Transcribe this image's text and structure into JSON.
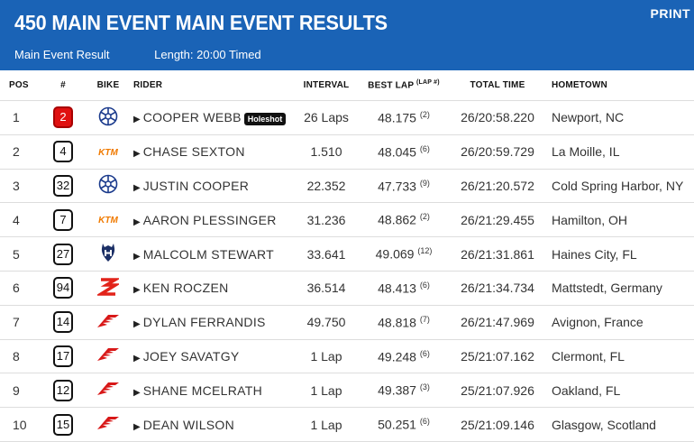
{
  "header": {
    "title": "450 MAIN EVENT MAIN EVENT RESULTS",
    "print_label": "PRINT",
    "subtitle_result": "Main Event Result",
    "subtitle_length": "Length: 20:00 Timed",
    "background_color": "#1a63b6"
  },
  "table": {
    "columns": {
      "pos": "POS",
      "num": "#",
      "bike": "BIKE",
      "rider": "RIDER",
      "interval": "INTERVAL",
      "best_lap": "BEST LAP",
      "best_lap_sup": "(LAP #)",
      "total_time": "TOTAL TIME",
      "hometown": "HOMETOWN"
    },
    "rows": [
      {
        "pos": "1",
        "num": "2",
        "bike": "yamaha-icon",
        "rider": "COOPER WEBB",
        "badge": "Holeshot",
        "interval": "26 Laps",
        "best_lap": "48.175",
        "lap": "(2)",
        "total": "26/20:58.220",
        "hometown": "Newport, NC"
      },
      {
        "pos": "2",
        "num": "4",
        "bike": "ktm-icon",
        "rider": "CHASE SEXTON",
        "badge": "",
        "interval": "1.510",
        "best_lap": "48.045",
        "lap": "(6)",
        "total": "26/20:59.729",
        "hometown": "La Moille, IL"
      },
      {
        "pos": "3",
        "num": "32",
        "bike": "yamaha-icon",
        "rider": "JUSTIN COOPER",
        "badge": "",
        "interval": "22.352",
        "best_lap": "47.733",
        "lap": "(9)",
        "total": "26/21:20.572",
        "hometown": "Cold Spring Harbor, NY"
      },
      {
        "pos": "4",
        "num": "7",
        "bike": "ktm-icon",
        "rider": "AARON PLESSINGER",
        "badge": "",
        "interval": "31.236",
        "best_lap": "48.862",
        "lap": "(2)",
        "total": "26/21:29.455",
        "hometown": "Hamilton, OH"
      },
      {
        "pos": "5",
        "num": "27",
        "bike": "husqvarna-icon",
        "rider": "MALCOLM STEWART",
        "badge": "",
        "interval": "33.641",
        "best_lap": "49.069",
        "lap": "(12)",
        "total": "26/21:31.861",
        "hometown": "Haines City, FL"
      },
      {
        "pos": "6",
        "num": "94",
        "bike": "suzuki-icon",
        "rider": "KEN ROCZEN",
        "badge": "",
        "interval": "36.514",
        "best_lap": "48.413",
        "lap": "(6)",
        "total": "26/21:34.734",
        "hometown": "Mattstedt, Germany"
      },
      {
        "pos": "7",
        "num": "14",
        "bike": "honda-icon",
        "rider": "DYLAN FERRANDIS",
        "badge": "",
        "interval": "49.750",
        "best_lap": "48.818",
        "lap": "(7)",
        "total": "26/21:47.969",
        "hometown": "Avignon, France"
      },
      {
        "pos": "8",
        "num": "17",
        "bike": "honda-icon",
        "rider": "JOEY SAVATGY",
        "badge": "",
        "interval": "1 Lap",
        "best_lap": "49.248",
        "lap": "(6)",
        "total": "25/21:07.162",
        "hometown": "Clermont, FL"
      },
      {
        "pos": "9",
        "num": "12",
        "bike": "honda-icon",
        "rider": "SHANE MCELRATH",
        "badge": "",
        "interval": "1 Lap",
        "best_lap": "49.387",
        "lap": "(3)",
        "total": "25/21:07.926",
        "hometown": "Oakland, FL"
      },
      {
        "pos": "10",
        "num": "15",
        "bike": "honda-icon",
        "rider": "DEAN WILSON",
        "badge": "",
        "interval": "1 Lap",
        "best_lap": "50.251",
        "lap": "(6)",
        "total": "25/21:09.146",
        "hometown": "Glasgow, Scotland"
      }
    ]
  }
}
